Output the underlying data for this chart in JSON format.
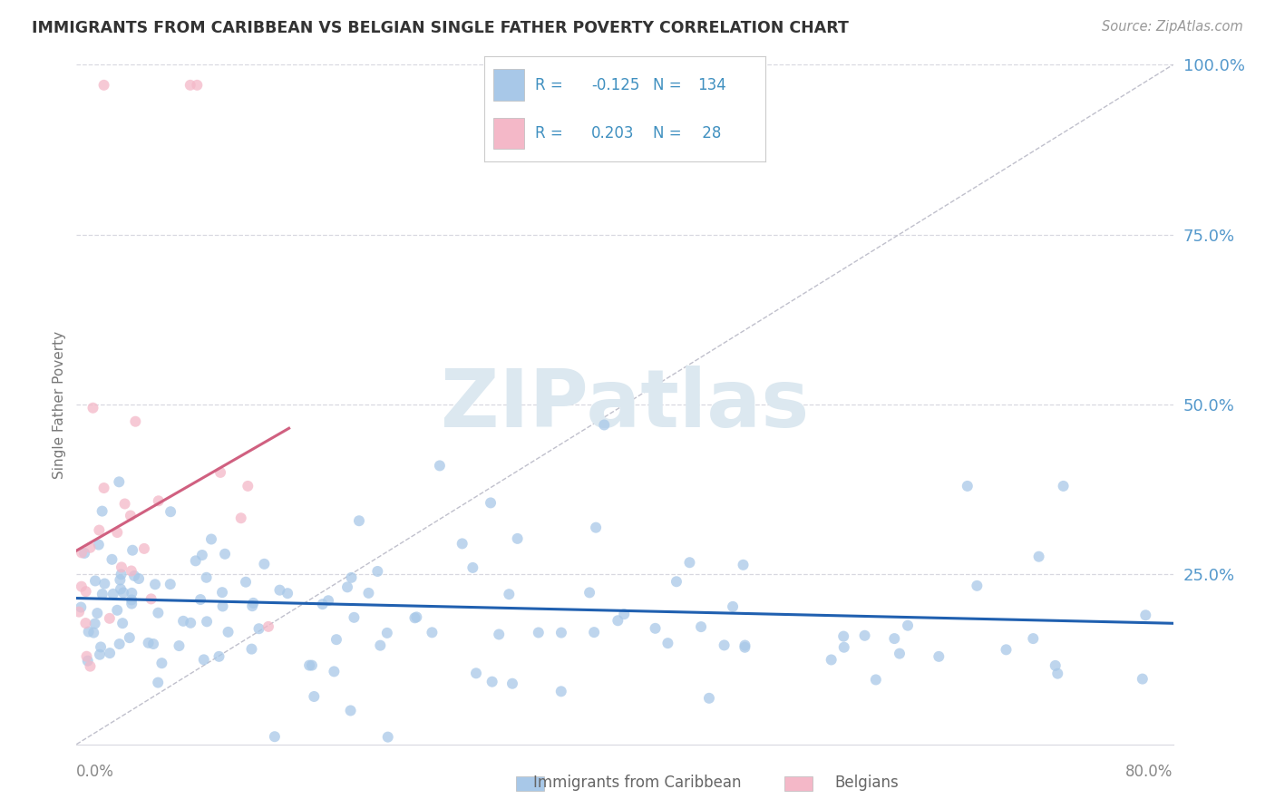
{
  "title": "IMMIGRANTS FROM CARIBBEAN VS BELGIAN SINGLE FATHER POVERTY CORRELATION CHART",
  "source": "Source: ZipAtlas.com",
  "ylabel": "Single Father Poverty",
  "legend_label1": "Immigrants from Caribbean",
  "legend_label2": "Belgians",
  "R1": -0.125,
  "N1": 134,
  "R2": 0.203,
  "N2": 28,
  "blue_color": "#a8c8e8",
  "pink_color": "#f4b8c8",
  "blue_line_color": "#2060b0",
  "pink_line_color": "#d06080",
  "ref_line_color": "#c8c8d8",
  "text_color_blue": "#4090c0",
  "ytick_color": "#5599cc",
  "watermark_color": "#dce8f0",
  "xlim": [
    0.0,
    0.8
  ],
  "ylim": [
    0.0,
    1.0
  ],
  "blue_trend_x0": 0.0,
  "blue_trend_y0": 0.215,
  "blue_trend_x1": 0.8,
  "blue_trend_y1": 0.178,
  "pink_trend_x0": 0.0,
  "pink_trend_y0": 0.285,
  "pink_trend_x1": 0.155,
  "pink_trend_y1": 0.465
}
